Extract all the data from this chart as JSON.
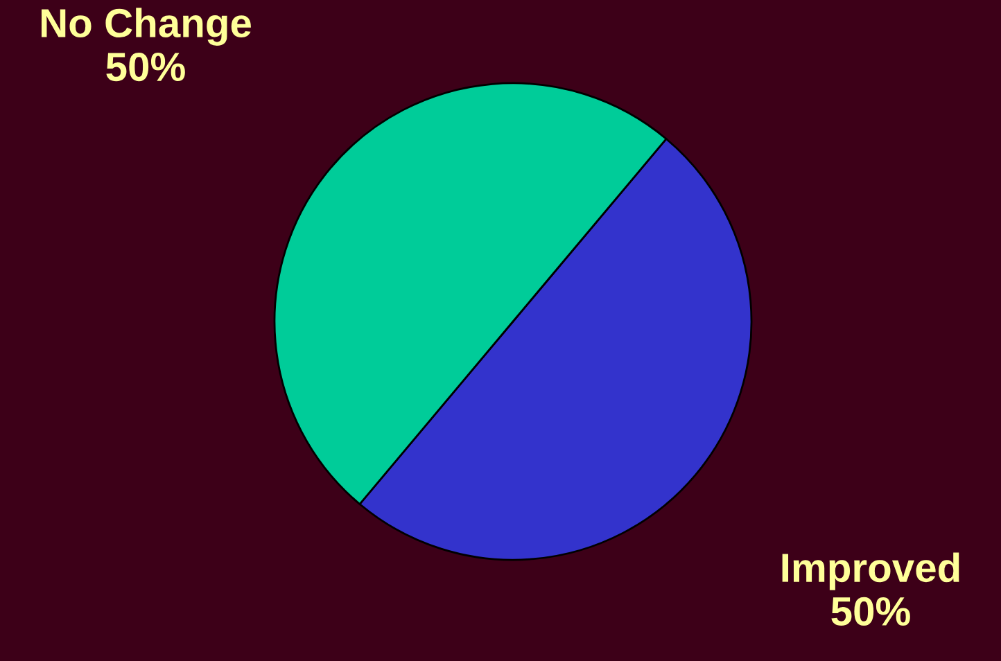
{
  "chart_data": {
    "type": "pie",
    "categories": [
      "Improved",
      "No Change"
    ],
    "values": [
      50,
      50
    ],
    "colors": [
      "#3333cc",
      "#00cc99"
    ],
    "value_labels": [
      "50%",
      "50%"
    ]
  }
}
